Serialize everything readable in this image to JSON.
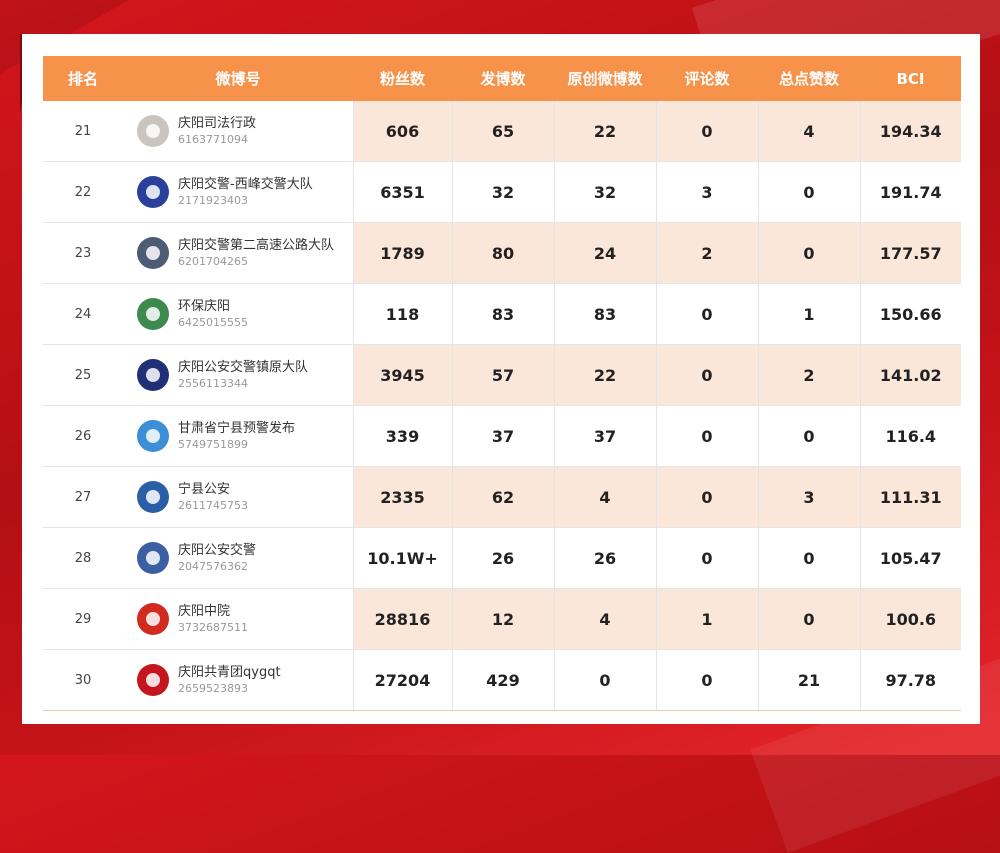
{
  "colors": {
    "header": "#f7924a",
    "row_alt": "#fbe6da",
    "frame": "#c8141a"
  },
  "headers": {
    "rank": "排名",
    "account": "微博号",
    "fans": "粉丝数",
    "posts": "发博数",
    "original": "原创微博数",
    "comments": "评论数",
    "likes": "总点赞数",
    "bci": "BCI"
  },
  "rows": [
    {
      "rank": "21",
      "name": "庆阳司法行政",
      "id": "6163771094",
      "fans": "606",
      "posts": "65",
      "original": "22",
      "comments": "0",
      "likes": "4",
      "bci": "194.34",
      "avatar_icon": "justice-emblem-icon",
      "avatar_color": "#c9c4be"
    },
    {
      "rank": "22",
      "name": "庆阳交警-西峰交警大队",
      "id": "2171923403",
      "fans": "6351",
      "posts": "32",
      "original": "32",
      "comments": "3",
      "likes": "0",
      "bci": "191.74",
      "avatar_icon": "police-badge-icon",
      "avatar_color": "#2b3f9c"
    },
    {
      "rank": "23",
      "name": "庆阳交警第二高速公路大队",
      "id": "6201704265",
      "fans": "1789",
      "posts": "80",
      "original": "24",
      "comments": "2",
      "likes": "0",
      "bci": "177.57",
      "avatar_icon": "police-cartoon-icon",
      "avatar_color": "#4d5b75"
    },
    {
      "rank": "24",
      "name": "环保庆阳",
      "id": "6425015555",
      "fans": "118",
      "posts": "83",
      "original": "83",
      "comments": "0",
      "likes": "1",
      "bci": "150.66",
      "avatar_icon": "environment-logo-icon",
      "avatar_color": "#3d8a4f"
    },
    {
      "rank": "25",
      "name": "庆阳公安交警镇原大队",
      "id": "2556113344",
      "fans": "3945",
      "posts": "57",
      "original": "22",
      "comments": "0",
      "likes": "2",
      "bci": "141.02",
      "avatar_icon": "police-badge-icon",
      "avatar_color": "#1f2f78"
    },
    {
      "rank": "26",
      "name": "甘肃省宁县预警发布",
      "id": "5749751899",
      "fans": "339",
      "posts": "37",
      "original": "37",
      "comments": "0",
      "likes": "0",
      "bci": "116.4",
      "avatar_icon": "warning-logo-icon",
      "avatar_color": "#3a8fd6"
    },
    {
      "rank": "27",
      "name": "宁县公安",
      "id": "2611745753",
      "fans": "2335",
      "posts": "62",
      "original": "4",
      "comments": "0",
      "likes": "3",
      "bci": "111.31",
      "avatar_icon": "police-badge-icon",
      "avatar_color": "#2a5fa8"
    },
    {
      "rank": "28",
      "name": "庆阳公安交警",
      "id": "2047576362",
      "fans": "10.1W+",
      "posts": "26",
      "original": "26",
      "comments": "0",
      "likes": "0",
      "bci": "105.47",
      "avatar_icon": "police-badge-icon",
      "avatar_color": "#3b5fa0"
    },
    {
      "rank": "29",
      "name": "庆阳中院",
      "id": "3732687511",
      "fans": "28816",
      "posts": "12",
      "original": "4",
      "comments": "1",
      "likes": "0",
      "bci": "100.6",
      "avatar_icon": "court-emblem-icon",
      "avatar_color": "#d22a1e"
    },
    {
      "rank": "30",
      "name": "庆阳共青团qygqt",
      "id": "2659523893",
      "fans": "27204",
      "posts": "429",
      "original": "0",
      "comments": "0",
      "likes": "21",
      "bci": "97.78",
      "avatar_icon": "youth-league-icon",
      "avatar_color": "#c4161c"
    }
  ]
}
